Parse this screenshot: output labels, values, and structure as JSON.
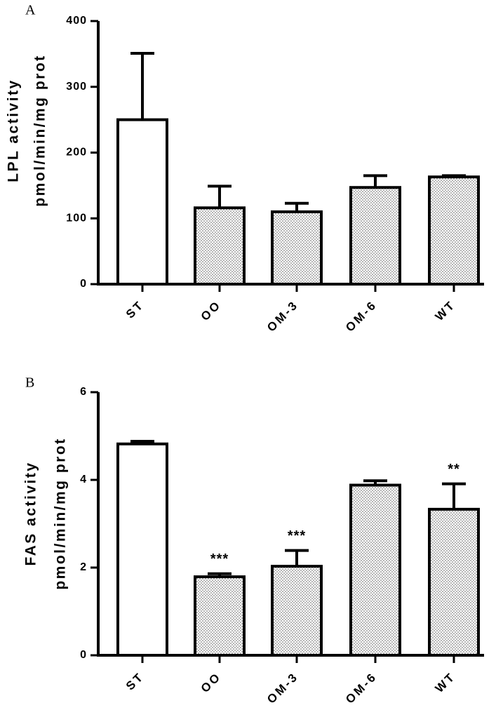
{
  "chart_data": [
    {
      "type": "bar",
      "panel": "A",
      "ylabel_lines": [
        "LPL activity",
        "pmol/min/mg prot"
      ],
      "categories": [
        "ST",
        "OO",
        "OM-3",
        "OM-6",
        "WT"
      ],
      "values": [
        250,
        116,
        110,
        147,
        163
      ],
      "errors": [
        101,
        33,
        13,
        18,
        2
      ],
      "fills": [
        "open",
        "dotted",
        "dotted",
        "dotted",
        "dotted"
      ],
      "significance": [
        "",
        "",
        "",
        "",
        ""
      ],
      "ylim": [
        0,
        400
      ],
      "yticks": [
        "0",
        "100",
        "200",
        "300",
        "400"
      ],
      "grid": false,
      "legend": "none"
    },
    {
      "type": "bar",
      "panel": "B",
      "ylabel_lines": [
        "FAS activity",
        "pmol/min/mg prot"
      ],
      "categories": [
        "ST",
        "OO",
        "OM-3",
        "OM-6",
        "WT"
      ],
      "values": [
        4.82,
        1.79,
        2.03,
        3.88,
        3.33
      ],
      "errors": [
        0.06,
        0.07,
        0.36,
        0.1,
        0.58
      ],
      "fills": [
        "open",
        "dotted",
        "dotted",
        "dotted",
        "dotted"
      ],
      "significance": [
        "",
        "***",
        "***",
        "",
        "**"
      ],
      "ylim": [
        0,
        6
      ],
      "yticks": [
        "0",
        "2",
        "4",
        "6"
      ],
      "grid": false,
      "legend": "none"
    }
  ]
}
